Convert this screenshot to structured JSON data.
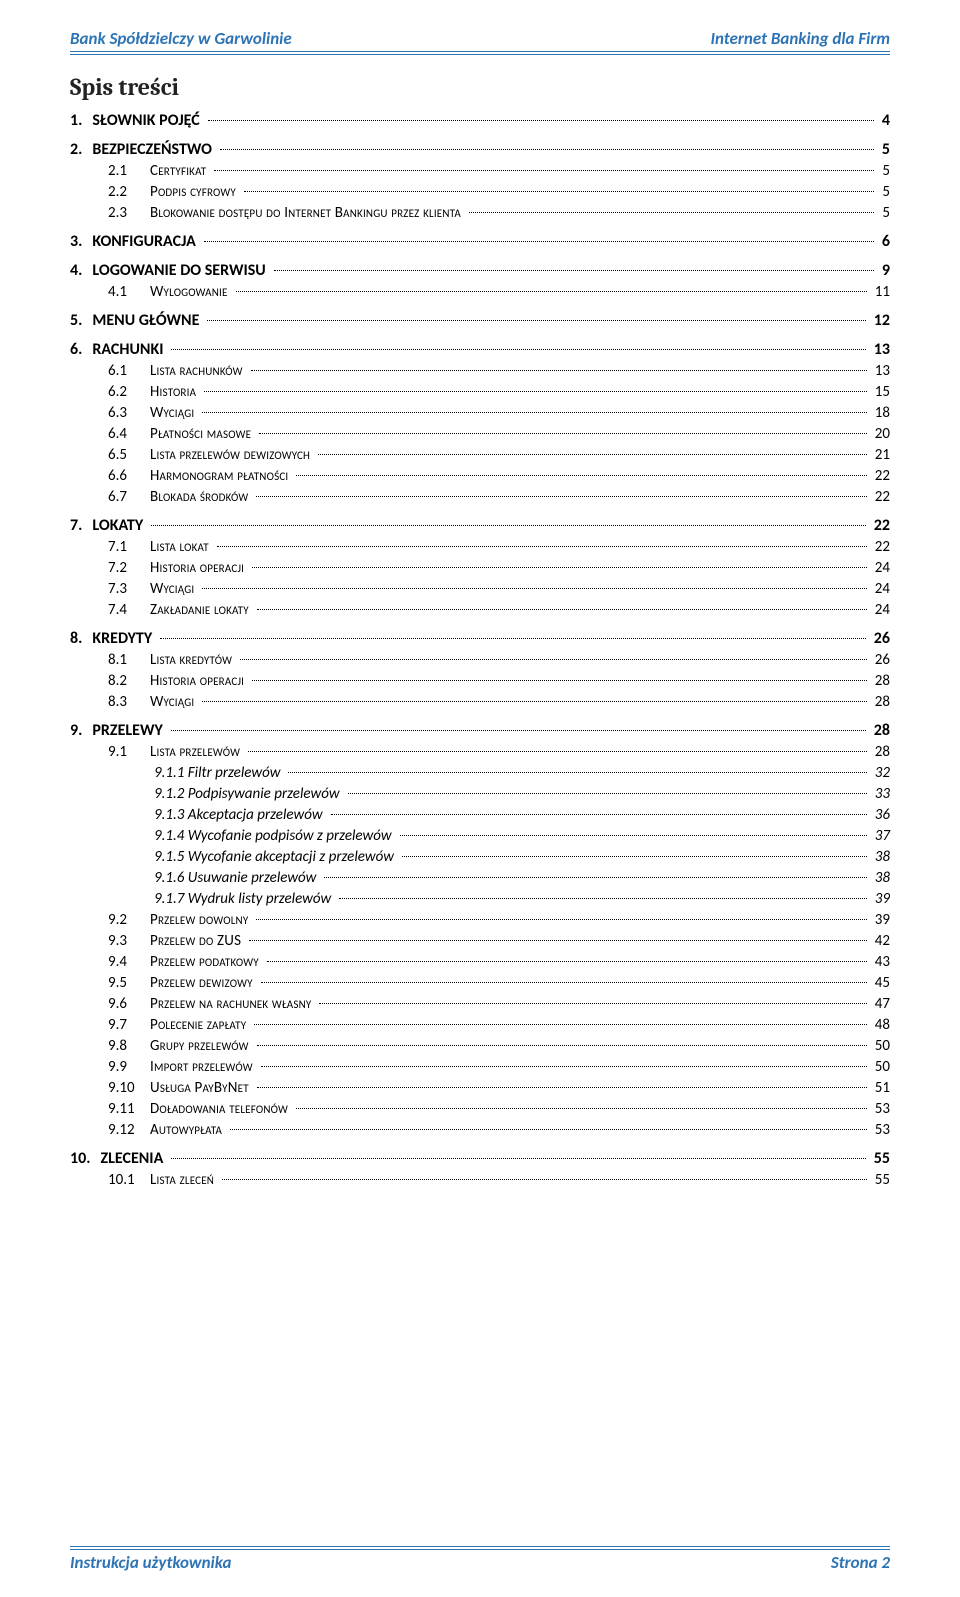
{
  "header": {
    "left": "Bank Spółdzielczy w Garwolinie",
    "right": "Internet Banking dla Firm"
  },
  "toc_title": "Spis treści",
  "footer": {
    "left": "Instrukcja użytkownika",
    "right": "Strona 2"
  },
  "colors": {
    "accent": "#2e74b5",
    "text": "#000000",
    "bg": "#ffffff"
  },
  "toc": [
    {
      "level": 1,
      "num": "1.",
      "label": "SŁOWNIK POJĘĆ",
      "page": "4",
      "gap_after": true
    },
    {
      "level": 1,
      "num": "2.",
      "label": "BEZPIECZEŃSTWO",
      "page": "5"
    },
    {
      "level": 2,
      "num": "2.1",
      "label": "Certyfikat",
      "page": "5"
    },
    {
      "level": 2,
      "num": "2.2",
      "label": "Podpis cyfrowy",
      "page": "5"
    },
    {
      "level": 2,
      "num": "2.3",
      "label": "Blokowanie dostępu do Internet Bankingu przez klienta",
      "page": "5",
      "gap_after": true
    },
    {
      "level": 1,
      "num": "3.",
      "label": "KONFIGURACJA",
      "page": "6",
      "gap_after": true
    },
    {
      "level": 1,
      "num": "4.",
      "label": "LOGOWANIE DO SERWISU",
      "page": "9"
    },
    {
      "level": 2,
      "num": "4.1",
      "label": "Wylogowanie",
      "page": "11",
      "gap_after": true
    },
    {
      "level": 1,
      "num": "5.",
      "label": "MENU GŁÓWNE",
      "page": "12",
      "gap_after": true
    },
    {
      "level": 1,
      "num": "6.",
      "label": "RACHUNKI",
      "page": "13"
    },
    {
      "level": 2,
      "num": "6.1",
      "label": "Lista rachunków",
      "page": "13"
    },
    {
      "level": 2,
      "num": "6.2",
      "label": "Historia",
      "page": "15"
    },
    {
      "level": 2,
      "num": "6.3",
      "label": "Wyciągi",
      "page": "18"
    },
    {
      "level": 2,
      "num": "6.4",
      "label": "Płatności masowe",
      "page": "20"
    },
    {
      "level": 2,
      "num": "6.5",
      "label": "Lista przelewów dewizowych",
      "page": "21"
    },
    {
      "level": 2,
      "num": "6.6",
      "label": "Harmonogram płatności",
      "page": "22"
    },
    {
      "level": 2,
      "num": "6.7",
      "label": "Blokada środków",
      "page": "22",
      "gap_after": true
    },
    {
      "level": 1,
      "num": "7.",
      "label": "LOKATY",
      "page": "22"
    },
    {
      "level": 2,
      "num": "7.1",
      "label": "Lista lokat",
      "page": "22"
    },
    {
      "level": 2,
      "num": "7.2",
      "label": "Historia operacji",
      "page": "24"
    },
    {
      "level": 2,
      "num": "7.3",
      "label": "Wyciągi",
      "page": "24"
    },
    {
      "level": 2,
      "num": "7.4",
      "label": "Zakładanie lokaty",
      "page": "24",
      "gap_after": true
    },
    {
      "level": 1,
      "num": "8.",
      "label": "KREDYTY",
      "page": "26"
    },
    {
      "level": 2,
      "num": "8.1",
      "label": "Lista kredytów",
      "page": "26"
    },
    {
      "level": 2,
      "num": "8.2",
      "label": "Historia operacji",
      "page": "28"
    },
    {
      "level": 2,
      "num": "8.3",
      "label": "Wyciągi",
      "page": "28",
      "gap_after": true
    },
    {
      "level": 1,
      "num": "9.",
      "label": "PRZELEWY",
      "page": "28"
    },
    {
      "level": 2,
      "num": "9.1",
      "label": "Lista przelewów",
      "page": "28"
    },
    {
      "level": 3,
      "num": "",
      "label": "9.1.1 Filtr przelewów",
      "page": "32"
    },
    {
      "level": 3,
      "num": "",
      "label": "9.1.2 Podpisywanie przelewów",
      "page": "33"
    },
    {
      "level": 3,
      "num": "",
      "label": "9.1.3 Akceptacja przelewów",
      "page": "36"
    },
    {
      "level": 3,
      "num": "",
      "label": "9.1.4 Wycofanie podpisów z przelewów",
      "page": "37"
    },
    {
      "level": 3,
      "num": "",
      "label": "9.1.5 Wycofanie akceptacji z przelewów",
      "page": "38"
    },
    {
      "level": 3,
      "num": "",
      "label": "9.1.6 Usuwanie przelewów",
      "page": "38"
    },
    {
      "level": 3,
      "num": "",
      "label": "9.1.7 Wydruk listy przelewów",
      "page": "39"
    },
    {
      "level": 2,
      "num": "9.2",
      "label": "Przelew dowolny",
      "page": "39"
    },
    {
      "level": 2,
      "num": "9.3",
      "label": "Przelew do ZUS",
      "page": "42"
    },
    {
      "level": 2,
      "num": "9.4",
      "label": "Przelew podatkowy",
      "page": "43"
    },
    {
      "level": 2,
      "num": "9.5",
      "label": "Przelew dewizowy",
      "page": "45"
    },
    {
      "level": 2,
      "num": "9.6",
      "label": "Przelew na rachunek własny",
      "page": "47"
    },
    {
      "level": 2,
      "num": "9.7",
      "label": "Polecenie zapłaty",
      "page": "48"
    },
    {
      "level": 2,
      "num": "9.8",
      "label": "Grupy przelewów",
      "page": "50"
    },
    {
      "level": 2,
      "num": "9.9",
      "label": "Import przelewów",
      "page": "50"
    },
    {
      "level": 2,
      "num": "9.10",
      "label": "Usługa PayByNet",
      "page": "51"
    },
    {
      "level": 2,
      "num": "9.11",
      "label": "Doładowania telefonów",
      "page": "53"
    },
    {
      "level": 2,
      "num": "9.12",
      "label": "Autowypłata",
      "page": "53",
      "gap_after": true
    },
    {
      "level": 1,
      "num": "10.",
      "label": "ZLECENIA",
      "page": "55"
    },
    {
      "level": 2,
      "num": "10.1",
      "label": "Lista zleceń",
      "page": "55"
    }
  ]
}
